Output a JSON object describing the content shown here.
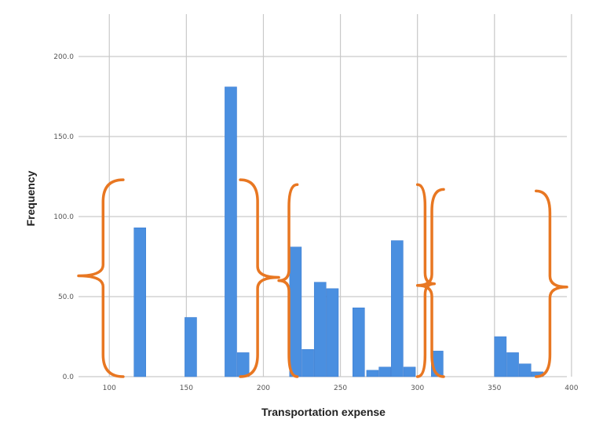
{
  "chart_data": {
    "type": "bar",
    "title": "",
    "xlabel": "Transportation expense",
    "ylabel": "Frequency",
    "xlim": [
      110,
      427
    ],
    "ylim": [
      0,
      220
    ],
    "grid": true,
    "colors": {
      "bar": "#4a8fe0",
      "bar_edge": "#3a7bd0",
      "grid": "#c9c9c9",
      "brace": "#e87722"
    },
    "x_ticks": [
      {
        "value": 130,
        "label": "100"
      },
      {
        "value": 180,
        "label": "150"
      },
      {
        "value": 230,
        "label": "200"
      },
      {
        "value": 280,
        "label": "250"
      },
      {
        "value": 330,
        "label": "300"
      },
      {
        "value": 380,
        "label": "350"
      },
      {
        "value": 430,
        "label": "400"
      }
    ],
    "y_ticks": [
      {
        "value": 0,
        "label": "0.0"
      },
      {
        "value": 50,
        "label": "50.0"
      },
      {
        "value": 100,
        "label": "100.0"
      },
      {
        "value": 150,
        "label": "150.0"
      },
      {
        "value": 200,
        "label": "200.0"
      }
    ],
    "bin_width": 8,
    "bins": [
      {
        "x": 150,
        "value": 93
      },
      {
        "x": 183,
        "value": 37
      },
      {
        "x": 209,
        "value": 181
      },
      {
        "x": 217,
        "value": 15
      },
      {
        "x": 251,
        "value": 81
      },
      {
        "x": 259,
        "value": 17
      },
      {
        "x": 267,
        "value": 59
      },
      {
        "x": 275,
        "value": 55
      },
      {
        "x": 292,
        "value": 43
      },
      {
        "x": 301,
        "value": 4
      },
      {
        "x": 309,
        "value": 6
      },
      {
        "x": 317,
        "value": 85
      },
      {
        "x": 325,
        "value": 6
      },
      {
        "x": 343,
        "value": 16
      },
      {
        "x": 384,
        "value": 25
      },
      {
        "x": 392,
        "value": 15
      },
      {
        "x": 400,
        "value": 8
      },
      {
        "x": 408,
        "value": 3
      }
    ],
    "annotations": [
      {
        "type": "brace",
        "x_left": 110,
        "x_right": 139,
        "y_bottom": 0,
        "y_top": 123,
        "y_tip": 63,
        "direction": "left"
      },
      {
        "type": "brace",
        "x_left": 215,
        "x_right": 240,
        "y_bottom": 0,
        "y_top": 123,
        "y_tip": 62,
        "direction": "right"
      },
      {
        "type": "brace",
        "x_left": 240,
        "x_right": 252,
        "y_bottom": 0,
        "y_top": 120,
        "y_tip": 60,
        "direction": "left"
      },
      {
        "type": "brace",
        "x_left": 330,
        "x_right": 341,
        "y_bottom": 0,
        "y_top": 120,
        "y_tip": 58,
        "direction": "right"
      },
      {
        "type": "brace",
        "x_left": 330,
        "x_right": 347,
        "y_bottom": 0,
        "y_top": 117,
        "y_tip": 57,
        "direction": "left"
      },
      {
        "type": "brace",
        "x_left": 407,
        "x_right": 427,
        "y_bottom": 0,
        "y_top": 116,
        "y_tip": 56,
        "direction": "right"
      }
    ]
  }
}
